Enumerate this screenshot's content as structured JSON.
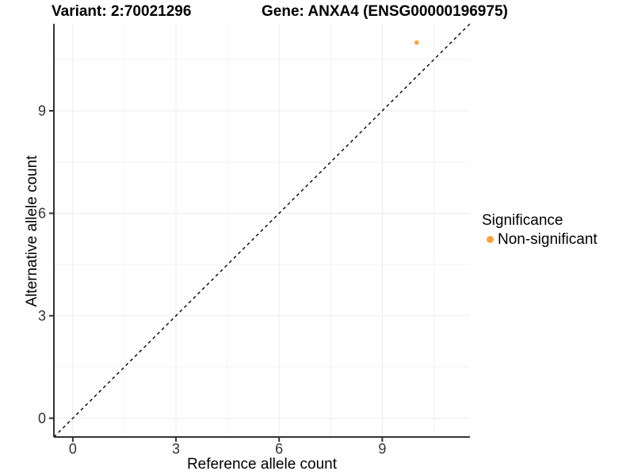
{
  "titles": {
    "variant": "Variant: 2:70021296",
    "gene": "Gene: ANXA4 (ENSG00000196975)"
  },
  "legend": {
    "title": "Significance"
  },
  "colors": {
    "axis_line": "#333333",
    "tick_text": "#333333",
    "grid_major": "#EBEBEB",
    "grid_minor": "#F4F4F4",
    "reference_line": "#000000",
    "point_orange": "#FAA43A"
  },
  "chart_data": {
    "type": "scatter",
    "title_variant": "Variant: 2:70021296",
    "title_gene": "Gene: ANXA4 (ENSG00000196975)",
    "xlabel": "Reference allele count",
    "ylabel": "Alternative allele count",
    "xlim": [
      -0.55,
      11.55
    ],
    "ylim": [
      -0.55,
      11.55
    ],
    "x_ticks": [
      0,
      3,
      6,
      9
    ],
    "y_ticks": [
      0,
      3,
      6,
      9
    ],
    "x_minor_ticks": [
      1.5,
      4.5,
      7.5,
      10.5
    ],
    "y_minor_ticks": [
      1.5,
      4.5,
      7.5,
      10.5
    ],
    "grid": "major+minor",
    "legend_position": "right",
    "reference_line": {
      "kind": "identity y=x",
      "dashed": true,
      "color": "#000000"
    },
    "series": [
      {
        "name": "Non-significant",
        "color": "#FAA43A",
        "points": [
          {
            "x": 10,
            "y": 11
          }
        ]
      }
    ]
  }
}
